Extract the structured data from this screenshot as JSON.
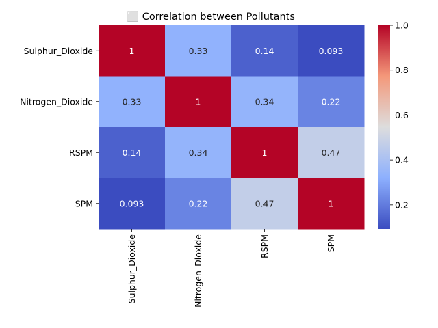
{
  "chart_data": {
    "type": "heatmap",
    "title": "⬜ Correlation between Pollutants",
    "row_labels": [
      "Sulphur_Dioxide",
      "Nitrogen_Dioxide",
      "RSPM",
      "SPM"
    ],
    "col_labels": [
      "Sulphur_Dioxide",
      "Nitrogen_Dioxide",
      "RSPM",
      "SPM"
    ],
    "values": [
      [
        1,
        0.33,
        0.14,
        0.093
      ],
      [
        0.33,
        1,
        0.34,
        0.22
      ],
      [
        0.14,
        0.34,
        1,
        0.47
      ],
      [
        0.093,
        0.22,
        0.47,
        1
      ]
    ],
    "cell_labels": [
      [
        "1",
        "0.33",
        "0.14",
        "0.093"
      ],
      [
        "0.33",
        "1",
        "0.34",
        "0.22"
      ],
      [
        "0.14",
        "0.34",
        "1",
        "0.47"
      ],
      [
        "0.093",
        "0.22",
        "0.47",
        "1"
      ]
    ],
    "colormap": "coolwarm",
    "color_range": [
      0.093,
      1
    ],
    "colorbar_ticks": [
      "1.0",
      "0.8",
      "0.6",
      "0.4",
      "0.2"
    ],
    "colorbar_tick_values": [
      1.0,
      0.8,
      0.6,
      0.4,
      0.2
    ],
    "legend_placement": "right",
    "grid": false,
    "xlabel": "",
    "ylabel": ""
  }
}
